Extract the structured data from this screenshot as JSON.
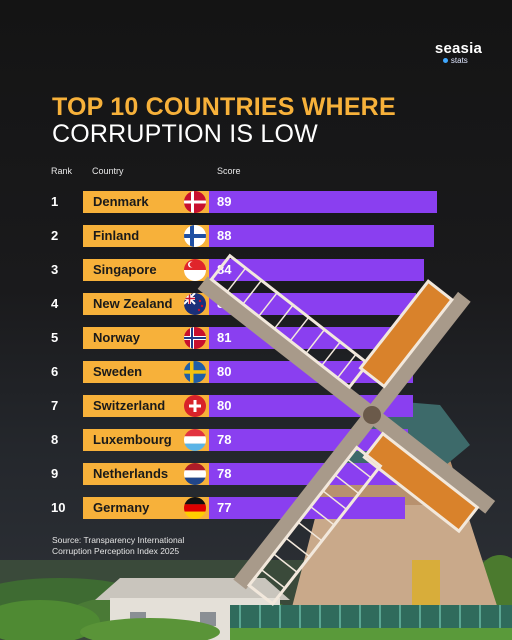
{
  "brand": {
    "name": "seasia",
    "sub": "stats"
  },
  "title": {
    "line1": "TOP 10 COUNTRIES WHERE",
    "line2": "CORRUPTION IS LOW"
  },
  "headers": {
    "rank": "Rank",
    "country": "Country",
    "score": "Score"
  },
  "source": {
    "line1": "Source: Transparency International",
    "line2": "Corruption Perception Index 2025"
  },
  "colors": {
    "accent": "#f7b13a",
    "bar": "#8a3ff0"
  },
  "chart_data": {
    "type": "bar",
    "orientation": "horizontal",
    "title": "TOP 10 COUNTRIES WHERE CORRUPTION IS LOW",
    "categories": [
      "Denmark",
      "Finland",
      "Singapore",
      "New Zealand",
      "Norway",
      "Sweden",
      "Switzerland",
      "Luxembourg",
      "Netherlands",
      "Germany"
    ],
    "ranks": [
      "1",
      "2",
      "3",
      "4",
      "5",
      "6",
      "7",
      "8",
      "9",
      "10"
    ],
    "values": [
      89,
      88,
      84,
      81,
      81,
      80,
      80,
      78,
      78,
      77
    ],
    "flags": [
      "denmark-flag-icon",
      "finland-flag-icon",
      "singapore-flag-icon",
      "new-zealand-flag-icon",
      "norway-flag-icon",
      "sweden-flag-icon",
      "switzerland-flag-icon",
      "luxembourg-flag-icon",
      "netherlands-flag-icon",
      "germany-flag-icon"
    ]
  }
}
